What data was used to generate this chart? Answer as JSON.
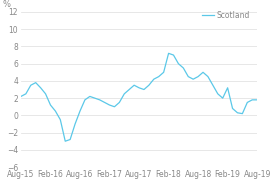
{
  "title": "",
  "ylabel": "%",
  "ylim": [
    -6,
    12
  ],
  "yticks": [
    -6,
    -4,
    -2,
    0,
    2,
    4,
    6,
    8,
    10,
    12
  ],
  "line_color": "#5bc8e8",
  "legend_label": "Scotland",
  "background_color": "#ffffff",
  "x_labels": [
    "Aug-15",
    "Feb-16",
    "Aug-16",
    "Feb-17",
    "Aug-17",
    "Feb-18",
    "Aug-18",
    "Feb-19",
    "Aug-19"
  ],
  "data_x": [
    0,
    1,
    2,
    3,
    4,
    5,
    6,
    7,
    8,
    9,
    10,
    11,
    12,
    13,
    14,
    15,
    16,
    17,
    18,
    19,
    20,
    21,
    22,
    23,
    24,
    25,
    26,
    27,
    28,
    29,
    30,
    31,
    32,
    33,
    34,
    35,
    36,
    37,
    38,
    39,
    40,
    41,
    42,
    43,
    44,
    45,
    46,
    47,
    48
  ],
  "data_y": [
    2.2,
    2.5,
    3.5,
    3.8,
    3.2,
    2.5,
    1.2,
    0.5,
    -0.5,
    -3.0,
    -2.8,
    -1.0,
    0.5,
    1.8,
    2.2,
    2.0,
    1.8,
    1.5,
    1.2,
    1.0,
    1.5,
    2.5,
    3.0,
    3.5,
    3.2,
    3.0,
    3.5,
    4.2,
    4.5,
    5.0,
    7.2,
    7.0,
    6.0,
    5.5,
    4.5,
    4.2,
    4.5,
    5.0,
    4.5,
    3.5,
    2.5,
    2.0,
    3.2,
    0.8,
    0.3,
    0.2,
    1.5,
    1.8,
    1.8
  ],
  "x_tick_positions": [
    0,
    6,
    12,
    18,
    24,
    30,
    36,
    42,
    48
  ],
  "grid_color": "#dddddd",
  "tick_fontsize": 5.5,
  "ylabel_fontsize": 6
}
